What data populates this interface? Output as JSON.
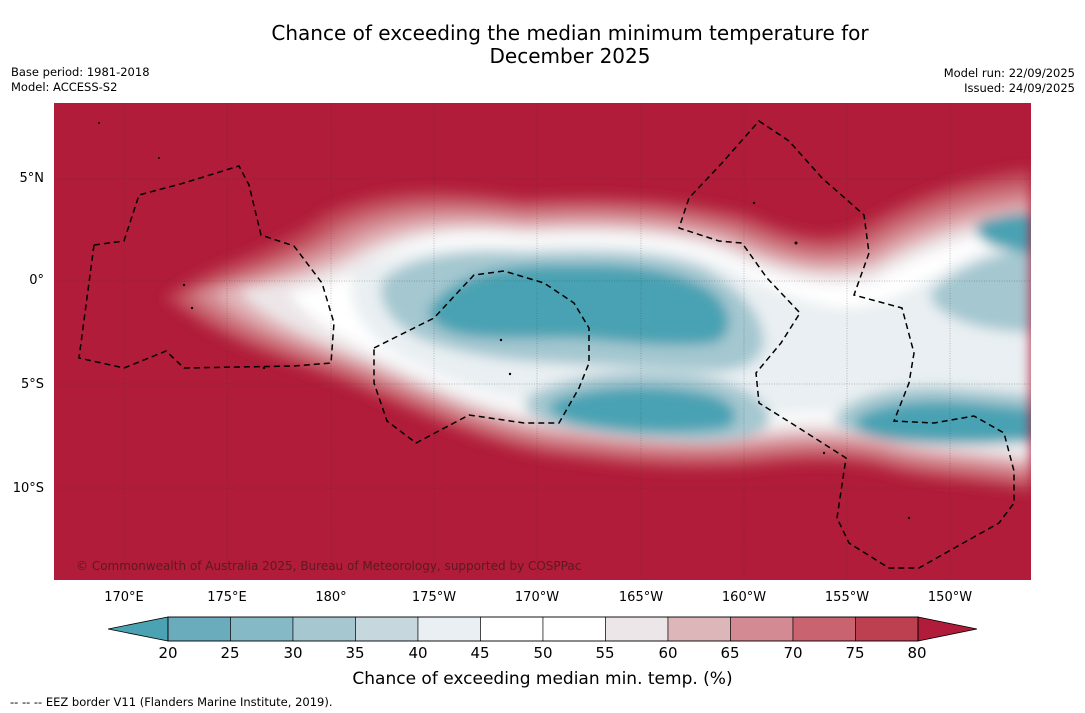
{
  "title_line1": "Chance of exceeding the median minimum temperature for",
  "title_line2": "December 2025",
  "meta_left": {
    "base_period": "Base period: 1981-2018",
    "model": "Model: ACCESS-S2"
  },
  "meta_right": {
    "model_run": "Model run: 22/09/2025",
    "issued": "Issued: 24/09/2025"
  },
  "map": {
    "lat_labels": [
      "5°N",
      "0°",
      "5°S",
      "10°S"
    ],
    "lon_labels": [
      "170°E",
      "175°E",
      "180°",
      "175°W",
      "170°W",
      "165°W",
      "160°W",
      "155°W",
      "150°W"
    ],
    "copyright": "© Commonwealth of Australia 2025, Bureau of Meteorology, supported by COSPPac",
    "colors": {
      "high": "#b01c39",
      "band_75": "#bd4051",
      "band_70": "#c8636f",
      "band_65": "#d48a92",
      "band_60": "#e1b4b8",
      "band_55": "#ece6e8",
      "near_median": "#ffffff",
      "band_40": "#e9eff2",
      "band_35": "#c6d8de",
      "band_30": "#a4c7d0",
      "band_25": "#79b3c0",
      "low": "#4aa2b3"
    }
  },
  "colorbar": {
    "tick_labels": [
      "20",
      "25",
      "30",
      "35",
      "40",
      "45",
      "50",
      "55",
      "60",
      "65",
      "70",
      "75",
      "80"
    ],
    "segment_colors": [
      "#6aacbc",
      "#86b9c6",
      "#a7c7d0",
      "#c6d8de",
      "#e9eff2",
      "#ffffff",
      "#ffffff",
      "#ece6e8",
      "#ddb6ba",
      "#d48a92",
      "#c8636f",
      "#bd4051"
    ],
    "low_extend_color": "#4aa2b3",
    "high_extend_color": "#b01c39",
    "label": "Chance of exceeding median min. temp. (%)"
  },
  "footnote": "--  --  -- EEZ border V11 (Flanders Marine Institute, 2019)."
}
